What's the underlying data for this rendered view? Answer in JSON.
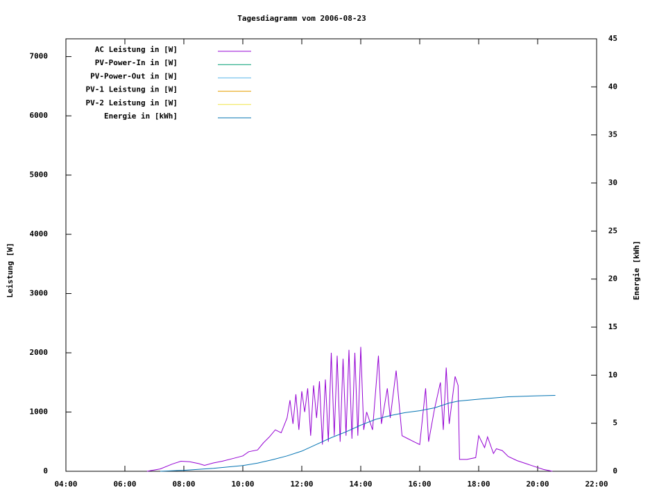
{
  "chart_data": {
    "type": "line",
    "title": "Tagesdiagramm vom 2006-08-23",
    "ylabel": "Leistung [W]",
    "y2label": "Energie [kWh]",
    "xlim": [
      4,
      22
    ],
    "xticks": [
      {
        "value": 4,
        "label": "04:00"
      },
      {
        "value": 6,
        "label": "06:00"
      },
      {
        "value": 8,
        "label": "08:00"
      },
      {
        "value": 10,
        "label": "10:00"
      },
      {
        "value": 12,
        "label": "12:00"
      },
      {
        "value": 14,
        "label": "14:00"
      },
      {
        "value": 16,
        "label": "16:00"
      },
      {
        "value": 18,
        "label": "18:00"
      },
      {
        "value": 20,
        "label": "20:00"
      },
      {
        "value": 22,
        "label": "22:00"
      }
    ],
    "ylim": [
      0,
      7300
    ],
    "yticks": [
      0,
      1000,
      2000,
      3000,
      4000,
      5000,
      6000,
      7000
    ],
    "y2lim": [
      0,
      45
    ],
    "y2ticks": [
      0,
      5,
      10,
      15,
      20,
      25,
      30,
      35,
      40,
      45
    ],
    "legend": "top-left",
    "series": [
      {
        "name": "AC Leistung in [W]",
        "color": "#9400d3",
        "x": [
          6.75,
          7.2,
          7.6,
          7.9,
          8.2,
          8.5,
          8.7,
          9.0,
          9.3,
          9.7,
          10.0,
          10.2,
          10.5,
          10.7,
          10.9,
          11.1,
          11.3,
          11.5,
          11.6,
          11.7,
          11.8,
          11.9,
          12.0,
          12.1,
          12.2,
          12.3,
          12.4,
          12.5,
          12.6,
          12.7,
          12.8,
          12.9,
          13.0,
          13.1,
          13.2,
          13.3,
          13.4,
          13.5,
          13.6,
          13.7,
          13.8,
          13.9,
          14.0,
          14.1,
          14.2,
          14.4,
          14.6,
          14.7,
          14.9,
          15.0,
          15.2,
          15.4,
          15.6,
          15.8,
          16.0,
          16.2,
          16.3,
          16.5,
          16.7,
          16.8,
          16.9,
          17.0,
          17.2,
          17.3,
          17.35,
          17.6,
          17.9,
          18.0,
          18.2,
          18.3,
          18.5,
          18.6,
          18.8,
          19.0,
          19.3,
          19.6,
          19.9,
          20.2,
          20.5
        ],
        "values": [
          0,
          40,
          120,
          170,
          160,
          130,
          100,
          140,
          170,
          220,
          260,
          330,
          360,
          480,
          580,
          700,
          650,
          900,
          1200,
          800,
          1300,
          700,
          1350,
          1000,
          1400,
          600,
          1450,
          900,
          1520,
          450,
          1550,
          500,
          2000,
          600,
          1950,
          500,
          1900,
          600,
          2050,
          550,
          2000,
          600,
          2100,
          700,
          1000,
          700,
          1950,
          800,
          1400,
          900,
          1700,
          600,
          550,
          500,
          450,
          1400,
          500,
          1050,
          1500,
          700,
          1750,
          800,
          1600,
          1450,
          200,
          200,
          230,
          600,
          400,
          580,
          300,
          380,
          350,
          250,
          180,
          130,
          80,
          30,
          0
        ]
      },
      {
        "name": "PV-Power-In in [W]",
        "color": "#009e73",
        "x": [],
        "values": []
      },
      {
        "name": "PV-Power-Out in [W]",
        "color": "#56b4e9",
        "x": [],
        "values": []
      },
      {
        "name": "PV-1 Leistung in [W]",
        "color": "#e69f00",
        "x": [],
        "values": []
      },
      {
        "name": "PV-2 Leistung in [W]",
        "color": "#f0e442",
        "x": [],
        "values": []
      },
      {
        "name": "Energie in [kWh]",
        "color": "#0072b2",
        "axis": "y2",
        "x": [
          7.2,
          8,
          9,
          10,
          10.5,
          11,
          11.5,
          12,
          12.5,
          13,
          13.5,
          14,
          14.5,
          15,
          15.5,
          16,
          16.5,
          17,
          17.3,
          18,
          19,
          20,
          20.6
        ],
        "values": [
          0,
          0.1,
          0.3,
          0.6,
          0.85,
          1.2,
          1.6,
          2.1,
          2.8,
          3.5,
          4.1,
          4.8,
          5.4,
          5.8,
          6.1,
          6.3,
          6.6,
          7.1,
          7.3,
          7.5,
          7.75,
          7.85,
          7.9
        ]
      }
    ]
  }
}
